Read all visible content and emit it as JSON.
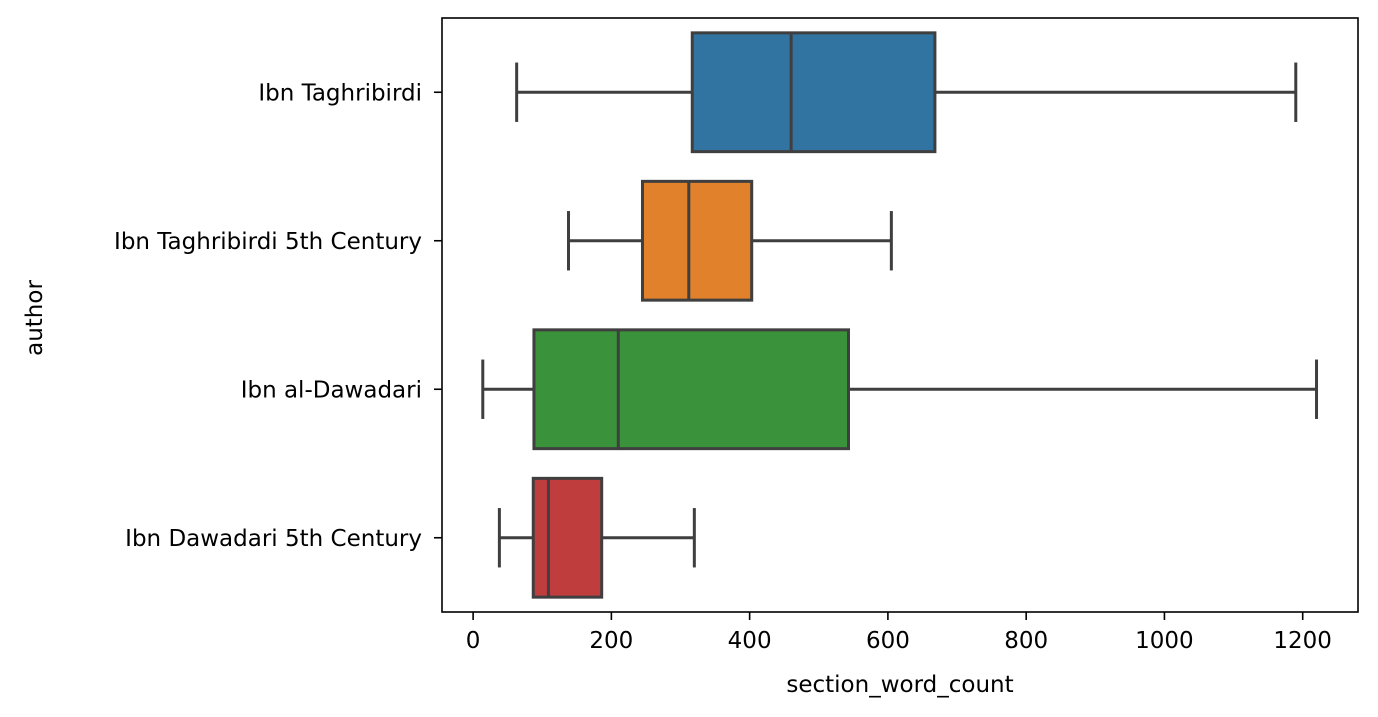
{
  "chart_data": {
    "type": "box",
    "orientation": "horizontal",
    "title": "",
    "xlabel": "section_word_count",
    "ylabel": "author",
    "xlim": [
      -45,
      1280
    ],
    "xticks": [
      0,
      200,
      400,
      600,
      800,
      1000,
      1200
    ],
    "grid": false,
    "legend": "none",
    "categories": [
      "Ibn Taghribirdi",
      "Ibn Taghribirdi 5th Century",
      "Ibn al-Dawadari",
      "Ibn Dawadari 5th Century"
    ],
    "boxes": [
      {
        "category": "Ibn Taghribirdi",
        "whisker_low": 63,
        "q1": 317,
        "median": 460,
        "q3": 668,
        "whisker_high": 1190,
        "color": "#3274a1"
      },
      {
        "category": "Ibn Taghribirdi 5th Century",
        "whisker_low": 138,
        "q1": 245,
        "median": 312,
        "q3": 403,
        "whisker_high": 605,
        "color": "#e1812c"
      },
      {
        "category": "Ibn al-Dawadari",
        "whisker_low": 14,
        "q1": 88,
        "median": 210,
        "q3": 543,
        "whisker_high": 1220,
        "color": "#3a923a"
      },
      {
        "category": "Ibn Dawadari 5th Century",
        "whisker_low": 38,
        "q1": 87,
        "median": 109,
        "q3": 186,
        "whisker_high": 320,
        "color": "#c03d3e"
      }
    ],
    "line_color": "#3f3f3f"
  }
}
